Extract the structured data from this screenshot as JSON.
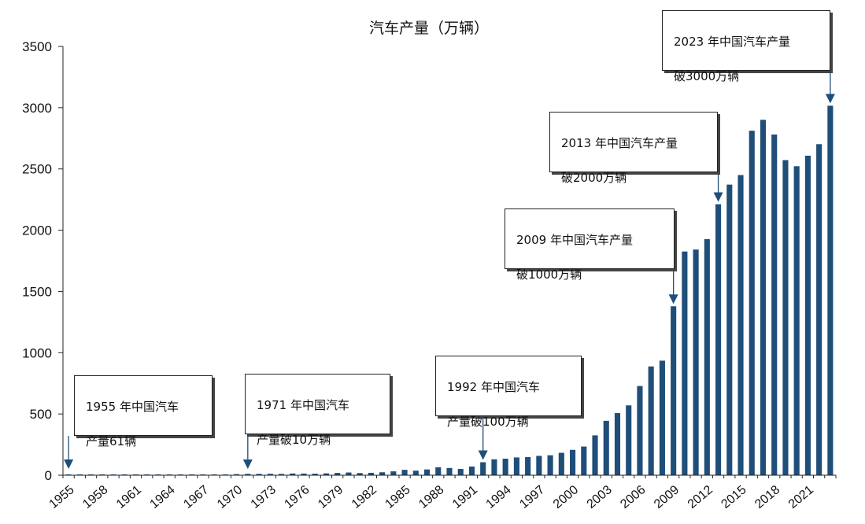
{
  "chart_data": {
    "type": "bar",
    "title": "汽车产量（万辆）",
    "xlabel": "",
    "ylabel": "",
    "ylim": [
      0,
      3500
    ],
    "yticks": [
      0,
      500,
      1000,
      1500,
      2000,
      2500,
      3000,
      3500
    ],
    "grid": false,
    "bar_color": "#1f4e79",
    "categories": [
      "1955",
      "1956",
      "1957",
      "1958",
      "1959",
      "1960",
      "1961",
      "1962",
      "1963",
      "1964",
      "1965",
      "1966",
      "1967",
      "1968",
      "1969",
      "1970",
      "1971",
      "1972",
      "1973",
      "1974",
      "1975",
      "1976",
      "1977",
      "1978",
      "1979",
      "1980",
      "1981",
      "1982",
      "1983",
      "1984",
      "1985",
      "1986",
      "1987",
      "1988",
      "1989",
      "1990",
      "1991",
      "1992",
      "1993",
      "1994",
      "1995",
      "1996",
      "1997",
      "1998",
      "1999",
      "2000",
      "2001",
      "2002",
      "2003",
      "2004",
      "2005",
      "2006",
      "2007",
      "2008",
      "2009",
      "2010",
      "2011",
      "2012",
      "2013",
      "2014",
      "2015",
      "2016",
      "2017",
      "2018",
      "2019",
      "2020",
      "2021",
      "2022",
      "2023"
    ],
    "tick_labels": [
      "1955",
      "1958",
      "1961",
      "1964",
      "1967",
      "1970",
      "1973",
      "1976",
      "1979",
      "1982",
      "1985",
      "1988",
      "1991",
      "1994",
      "1997",
      "2000",
      "2003",
      "2006",
      "2009",
      "2012",
      "2015",
      "2018",
      "2021"
    ],
    "values": [
      0.0061,
      0.2,
      0.8,
      1.6,
      2,
      2.2,
      0.4,
      1,
      2,
      2.8,
      4,
      5.6,
      2,
      2.5,
      5,
      8.7,
      11,
      10.8,
      11.6,
      10.5,
      14,
      13.5,
      12.5,
      14.9,
      18.6,
      22.2,
      17.6,
      19.6,
      24,
      31.6,
      44,
      37,
      47,
      65,
      59,
      51,
      71,
      106,
      130,
      135,
      145,
      148,
      158,
      163,
      183,
      207,
      234,
      325,
      444,
      507,
      570,
      728,
      888,
      935,
      1379,
      1826,
      1842,
      1927,
      2212,
      2372,
      2450,
      2812,
      2901,
      2781,
      2572,
      2522,
      2608,
      2702,
      3016
    ],
    "annotations": [
      {
        "year": "1955",
        "line1": "1955 年中国汽车",
        "line2": "产量61辆"
      },
      {
        "year": "1971",
        "line1": "1971 年中国汽车",
        "line2": "产量破10万辆"
      },
      {
        "year": "1992",
        "line1": "1992 年中国汽车",
        "line2": "产量破100万辆"
      },
      {
        "year": "2009",
        "line1": "2009 年中国汽车产量",
        "line2": "破1000万辆"
      },
      {
        "year": "2013",
        "line1": "2013 年中国汽车产量",
        "line2": "破2000万辆"
      },
      {
        "year": "2023",
        "line1": "2023 年中国汽车产量",
        "line2": "破3000万辆"
      }
    ]
  }
}
